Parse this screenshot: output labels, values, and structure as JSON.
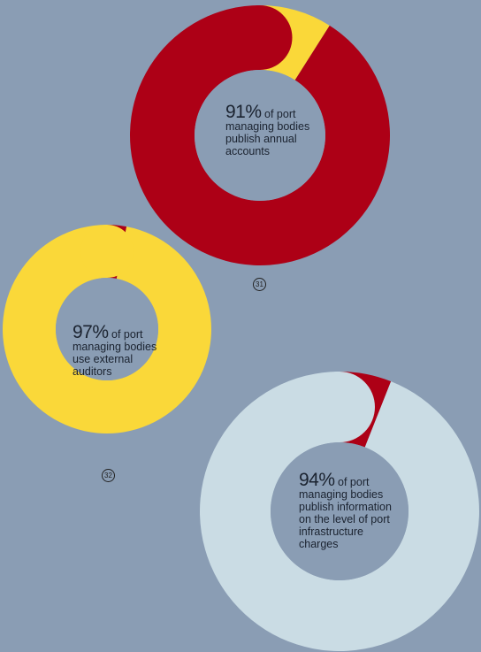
{
  "chart_data": [
    {
      "type": "pie",
      "value": 91,
      "complement": 9,
      "unit": "%",
      "pct_label": "91%",
      "lead_text": "of port",
      "rest_text": "managing bodies publish annual accounts",
      "footnote": "31",
      "colors": {
        "value": "#ad0016",
        "complement": "#fad839"
      }
    },
    {
      "type": "pie",
      "value": 97,
      "complement": 3,
      "unit": "%",
      "pct_label": "97%",
      "lead_text": "of port",
      "rest_text": "managing bodies use external auditors",
      "footnote": "32",
      "colors": {
        "value": "#fad839",
        "complement": "#ad0016"
      }
    },
    {
      "type": "pie",
      "value": 94,
      "complement": 6,
      "unit": "%",
      "pct_label": "94%",
      "lead_text": "of port",
      "rest_text": "managing bodies publish information on the level of port infrastructure charges",
      "colors": {
        "value": "#cadce4",
        "complement": "#ad0016"
      }
    }
  ],
  "background_color": "#8a9db4"
}
